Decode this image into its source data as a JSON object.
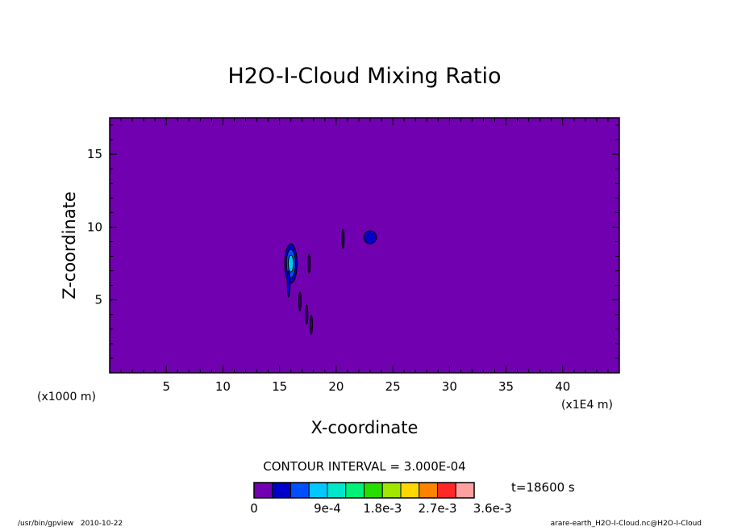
{
  "chart_data": {
    "type": "heatmap",
    "title": "H2O-I-Cloud Mixing Ratio",
    "xlabel": "X-coordinate",
    "ylabel": "Z-coordinate",
    "x_unit_label": "(x1E4 m)",
    "y_unit_label": "(x1000 m)",
    "xlim": [
      0.0,
      45.0
    ],
    "ylim": [
      0.0,
      17.5
    ],
    "x_ticks": [
      5,
      10,
      15,
      20,
      25,
      30,
      35,
      40
    ],
    "y_ticks": [
      5,
      10,
      15
    ],
    "x_tick_labels": [
      "5",
      "10",
      "15",
      "20",
      "25",
      "30",
      "35",
      "40"
    ],
    "y_tick_labels": [
      "5",
      "10",
      "15"
    ],
    "background_level_color": "#7000b0",
    "contour_interval_text": "CONTOUR INTERVAL = 3.000E-04",
    "time_text": "t=18600 s",
    "colorbar": {
      "colors": [
        "#7000b0",
        "#0000c8",
        "#0050ff",
        "#00c8ff",
        "#00e6c8",
        "#00f078",
        "#28dc00",
        "#a0e600",
        "#ffd700",
        "#ff8200",
        "#ff2828",
        "#ffa0a0"
      ],
      "tick_labels": [
        "0",
        "9e-4",
        "1.8e-3",
        "2.7e-3",
        "3.6e-3"
      ]
    },
    "features": [
      {
        "kind": "cloud-blob",
        "x": 16.0,
        "z": 7.5,
        "levels": [
          "#0000c8",
          "#0050ff",
          "#00c8ff"
        ]
      },
      {
        "kind": "cloud-blob",
        "x": 23.0,
        "z": 9.3,
        "levels": [
          "#0000c8"
        ]
      },
      {
        "kind": "streak",
        "x": 20.6,
        "z": 9.2
      },
      {
        "kind": "streak",
        "x": 17.6,
        "z": 7.5
      },
      {
        "kind": "streak",
        "x": 16.8,
        "z": 4.9
      },
      {
        "kind": "streak",
        "x": 17.4,
        "z": 4.0
      },
      {
        "kind": "streak",
        "x": 17.8,
        "z": 3.3
      }
    ]
  },
  "footer": {
    "left": "/usr/bin/gpview   2010-10-22",
    "right": "arare-earth_H2O-I-Cloud.nc@H2O-I-Cloud"
  }
}
